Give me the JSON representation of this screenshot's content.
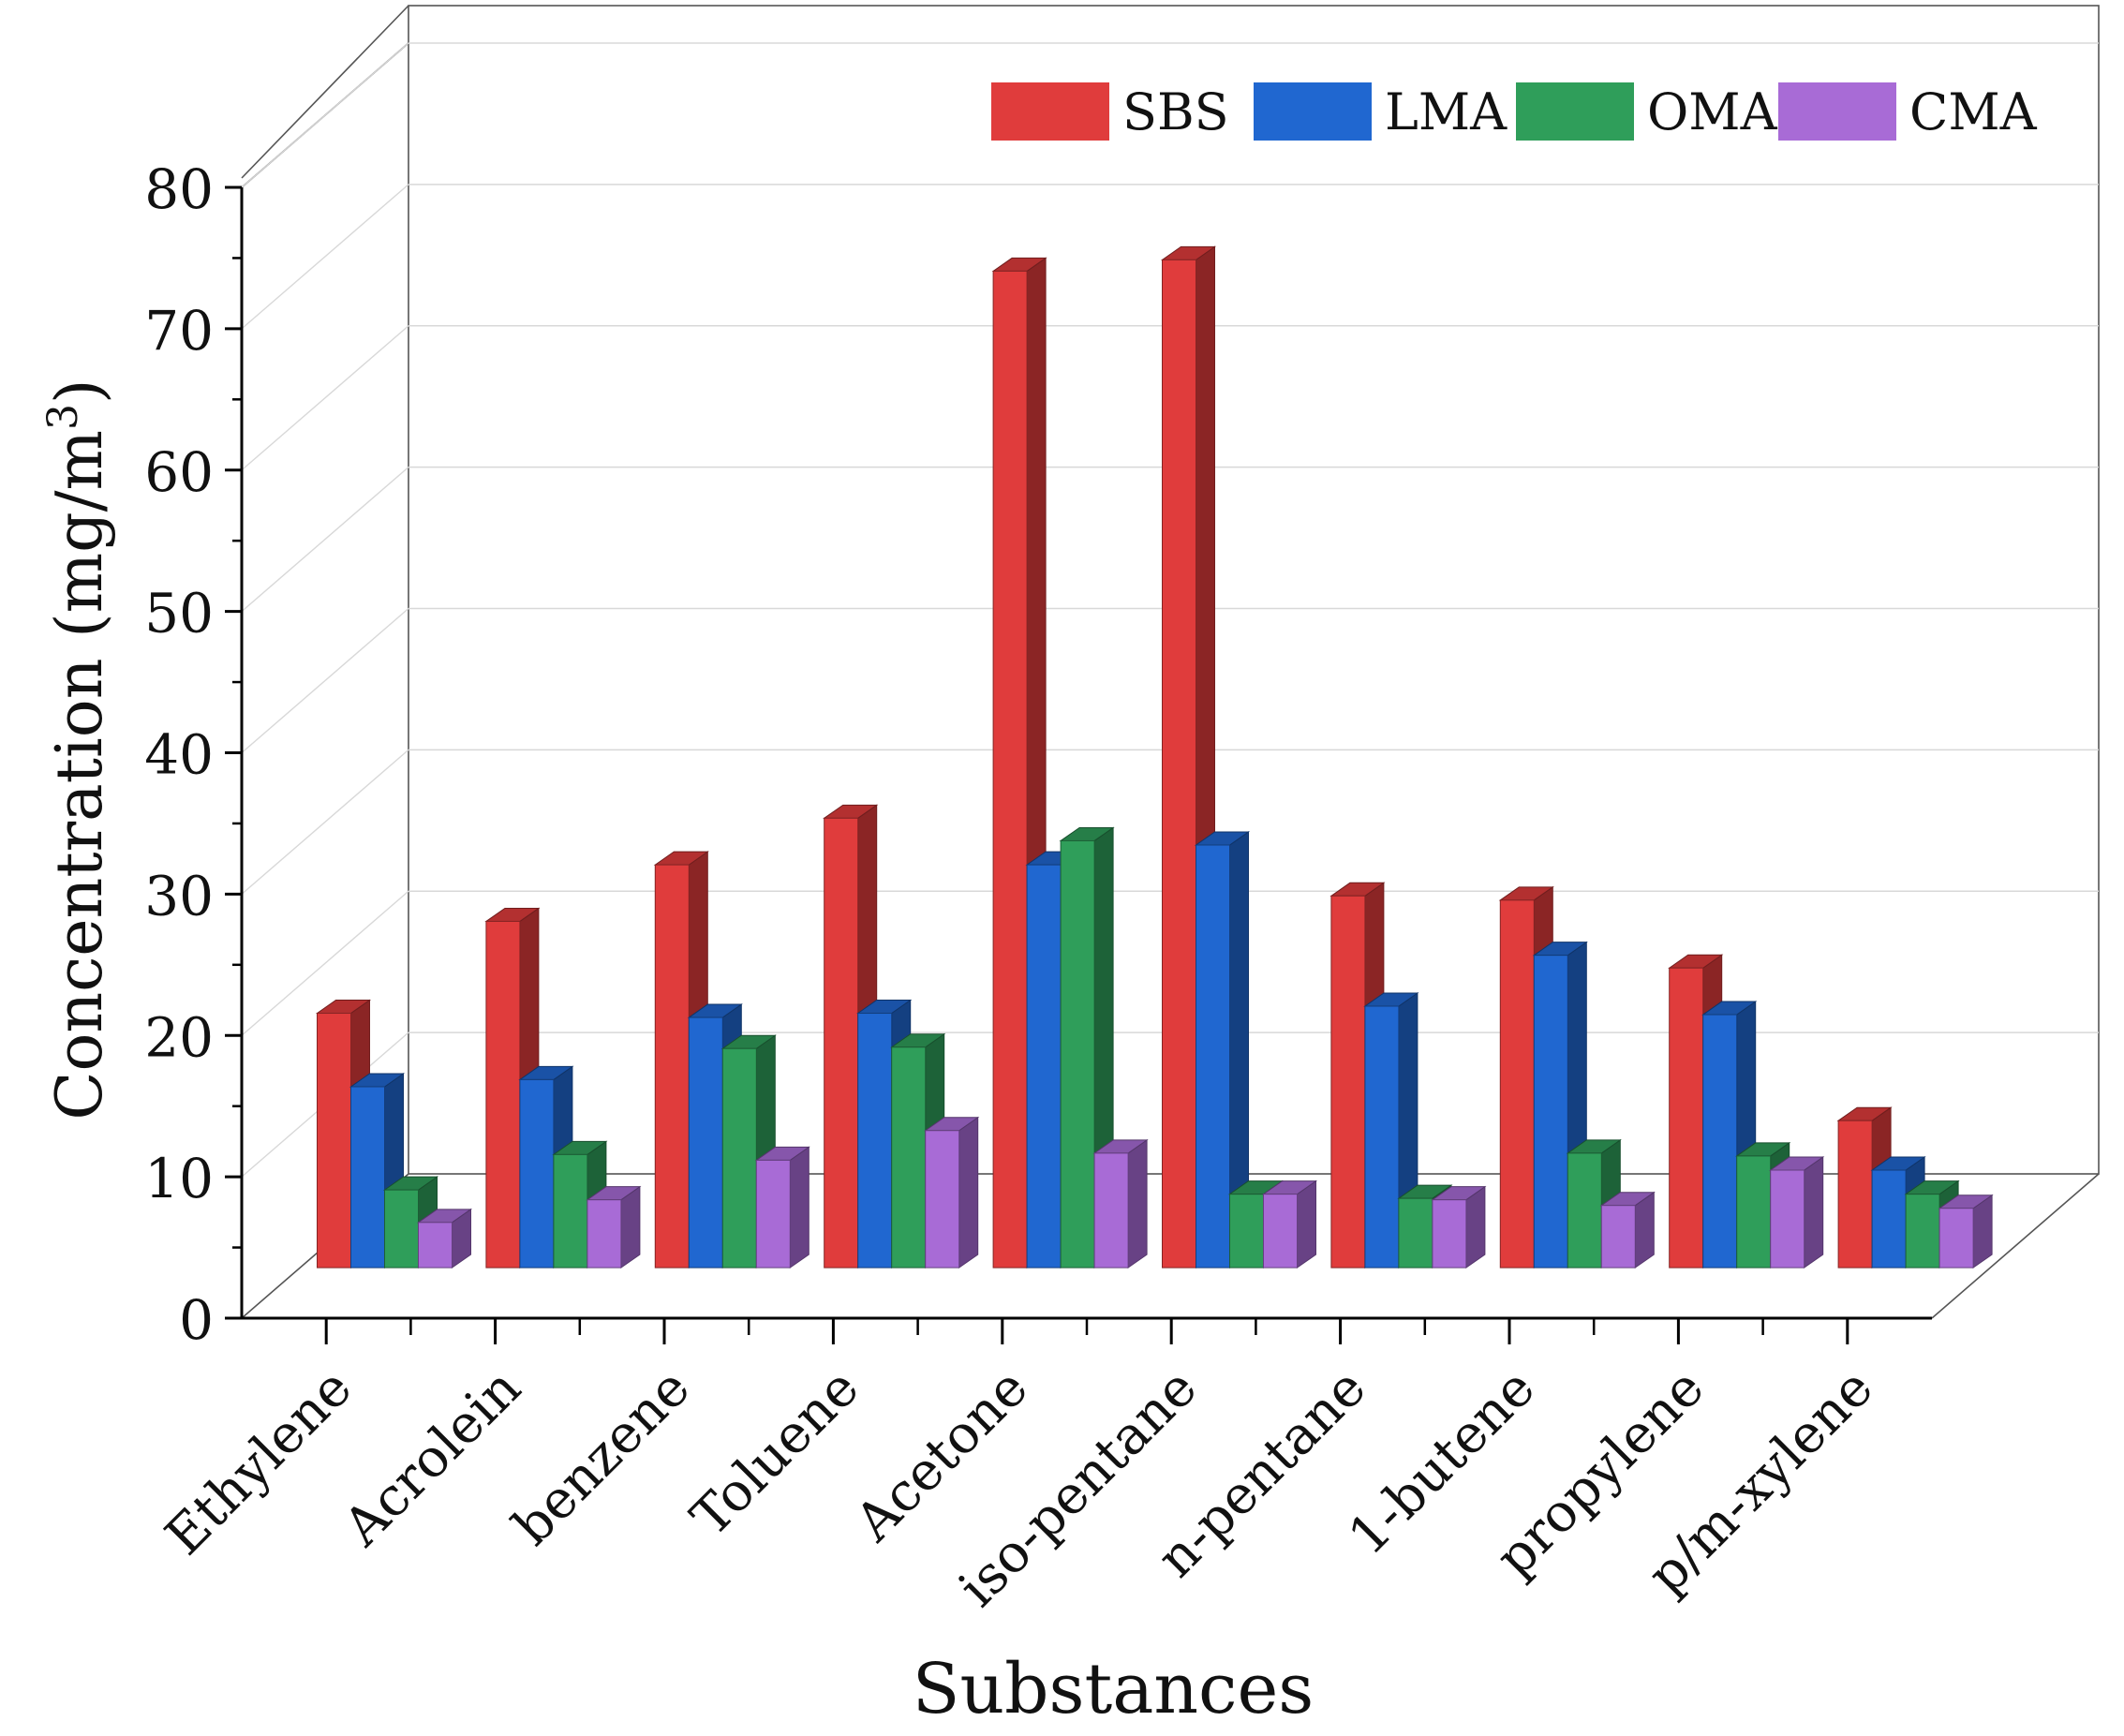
{
  "chart_data": {
    "type": "bar",
    "style": "3d-clustered",
    "title": "",
    "xlabel": "Substances",
    "ylabel_main": "Concentration (mg/m",
    "ylabel_sup": "3",
    "ylabel_close": ")",
    "ylim": [
      0,
      80
    ],
    "yticks": [
      "0",
      "10",
      "20",
      "30",
      "40",
      "50",
      "60",
      "70",
      "80"
    ],
    "grid": true,
    "legend_position": "top-right",
    "categories": [
      "Ethylene",
      "Acrolein",
      "benzene",
      "Toluene",
      "Acetone",
      "iso-pentane",
      "n-pentane",
      "1-butene",
      "propylene",
      "p/m-xylene"
    ],
    "series": [
      {
        "name": "SBS",
        "color": "#e03c3c",
        "values": [
          18.0,
          24.5,
          28.5,
          31.8,
          70.5,
          71.3,
          26.3,
          26.0,
          21.2,
          10.4
        ]
      },
      {
        "name": "LMA",
        "color": "#2067d0",
        "values": [
          12.8,
          13.3,
          17.7,
          18.0,
          28.5,
          29.9,
          18.5,
          22.1,
          17.9,
          6.9
        ]
      },
      {
        "name": "OMA",
        "color": "#2f9e5a",
        "values": [
          5.5,
          8.0,
          15.5,
          15.6,
          30.2,
          5.2,
          4.9,
          8.1,
          7.9,
          5.2
        ]
      },
      {
        "name": "CMA",
        "color": "#a86bd6",
        "values": [
          3.2,
          4.8,
          7.6,
          9.7,
          8.1,
          5.2,
          4.8,
          4.4,
          6.9,
          4.2
        ]
      }
    ]
  }
}
